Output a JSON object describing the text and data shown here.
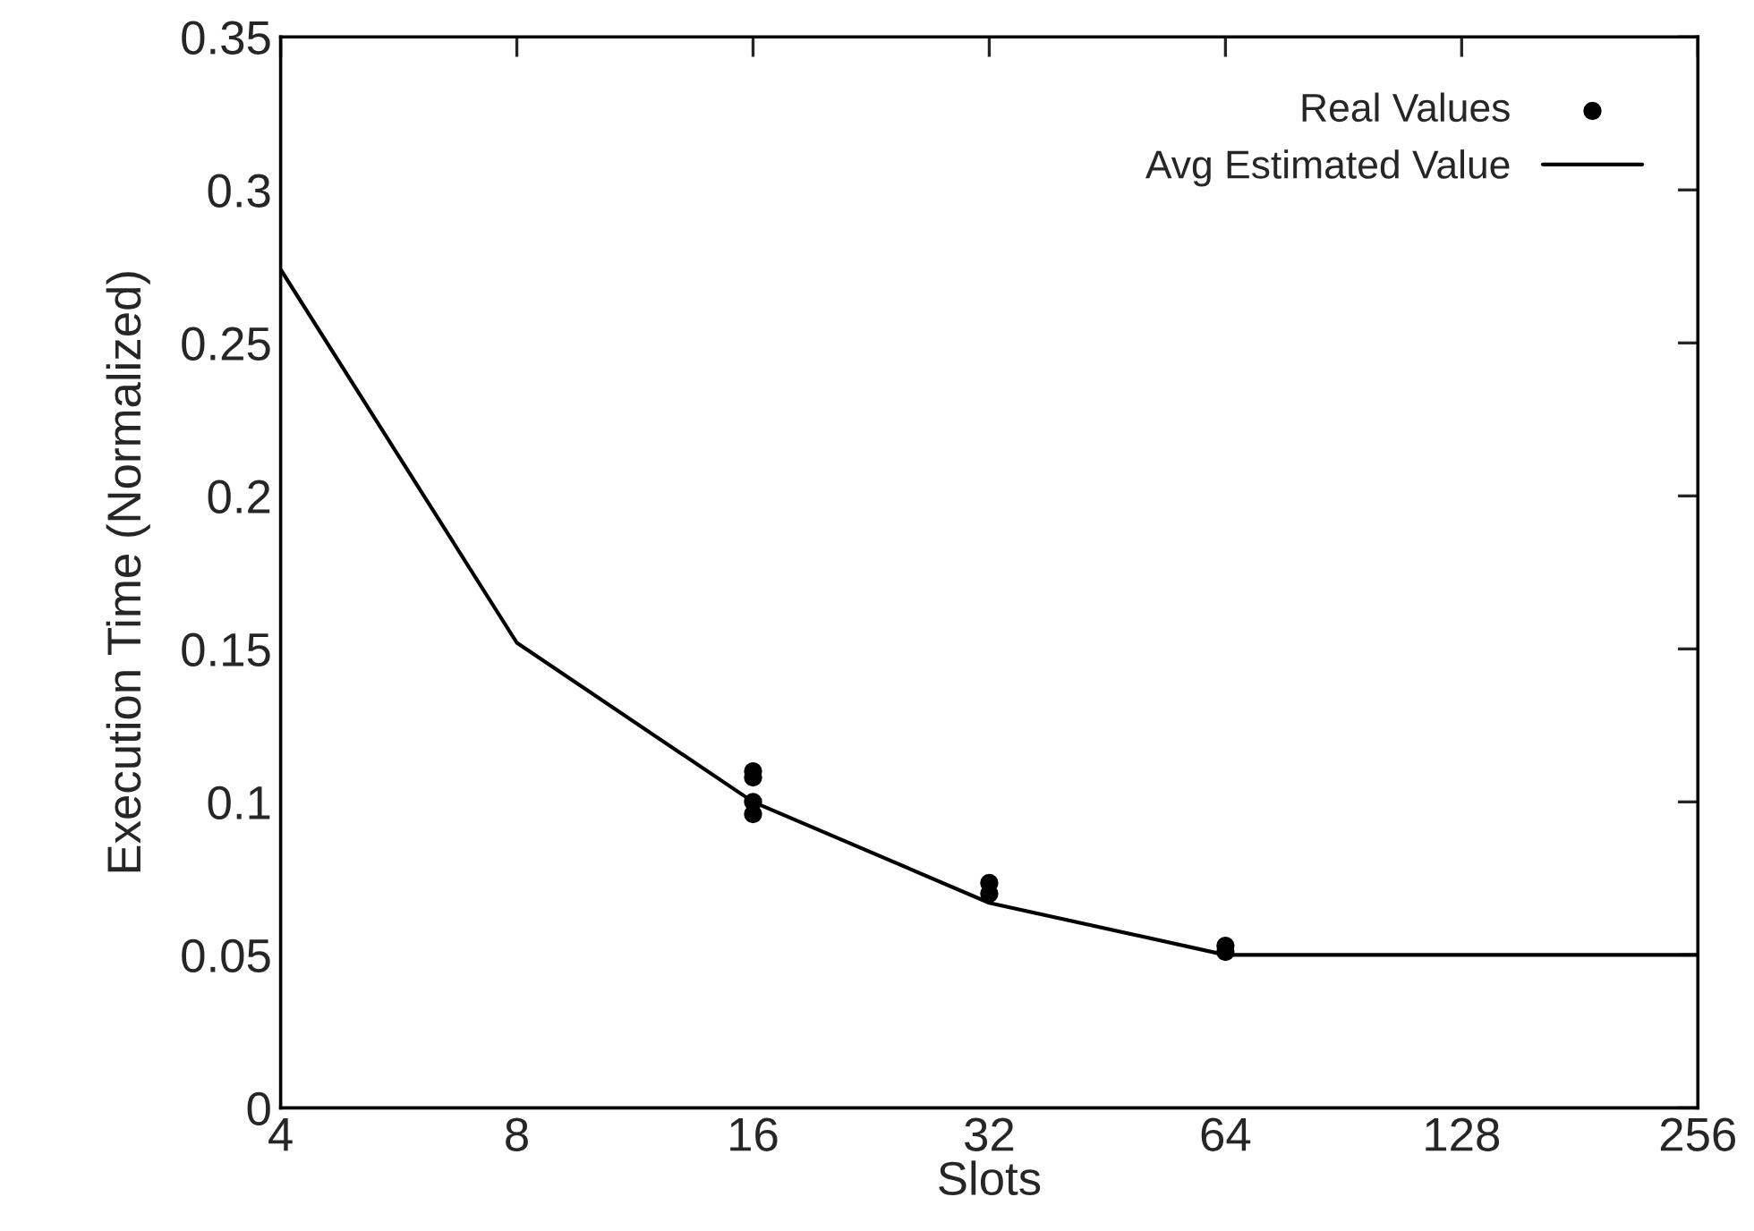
{
  "chart_data": {
    "type": "line",
    "xlabel": "Slots",
    "ylabel": "Execution Time (Normalized)",
    "log": "x",
    "xlim": [
      4,
      256
    ],
    "xticks": [
      4,
      8,
      16,
      32,
      64,
      128,
      256
    ],
    "ylim": [
      0,
      0.35
    ],
    "yticks": [
      0,
      0.05,
      0.1,
      0.15,
      0.2,
      0.25,
      0.3,
      0.35
    ],
    "grid": false,
    "legend": "top right",
    "series": [
      {
        "name": "Real Values",
        "type": "scatter",
        "color": "#000000",
        "marker": "circle",
        "x": [
          16,
          16,
          16,
          16,
          32,
          32,
          64,
          64
        ],
        "values": [
          0.11,
          0.108,
          0.1,
          0.096,
          0.0735,
          0.07,
          0.053,
          0.051
        ]
      },
      {
        "name": "Avg Estimated Value",
        "color": "#000000",
        "marker": "none",
        "line_style": "solid",
        "x": [
          4,
          8,
          16,
          32,
          64,
          256
        ],
        "values": [
          0.274,
          0.152,
          0.1,
          0.067,
          0.05,
          0.05
        ]
      }
    ]
  }
}
